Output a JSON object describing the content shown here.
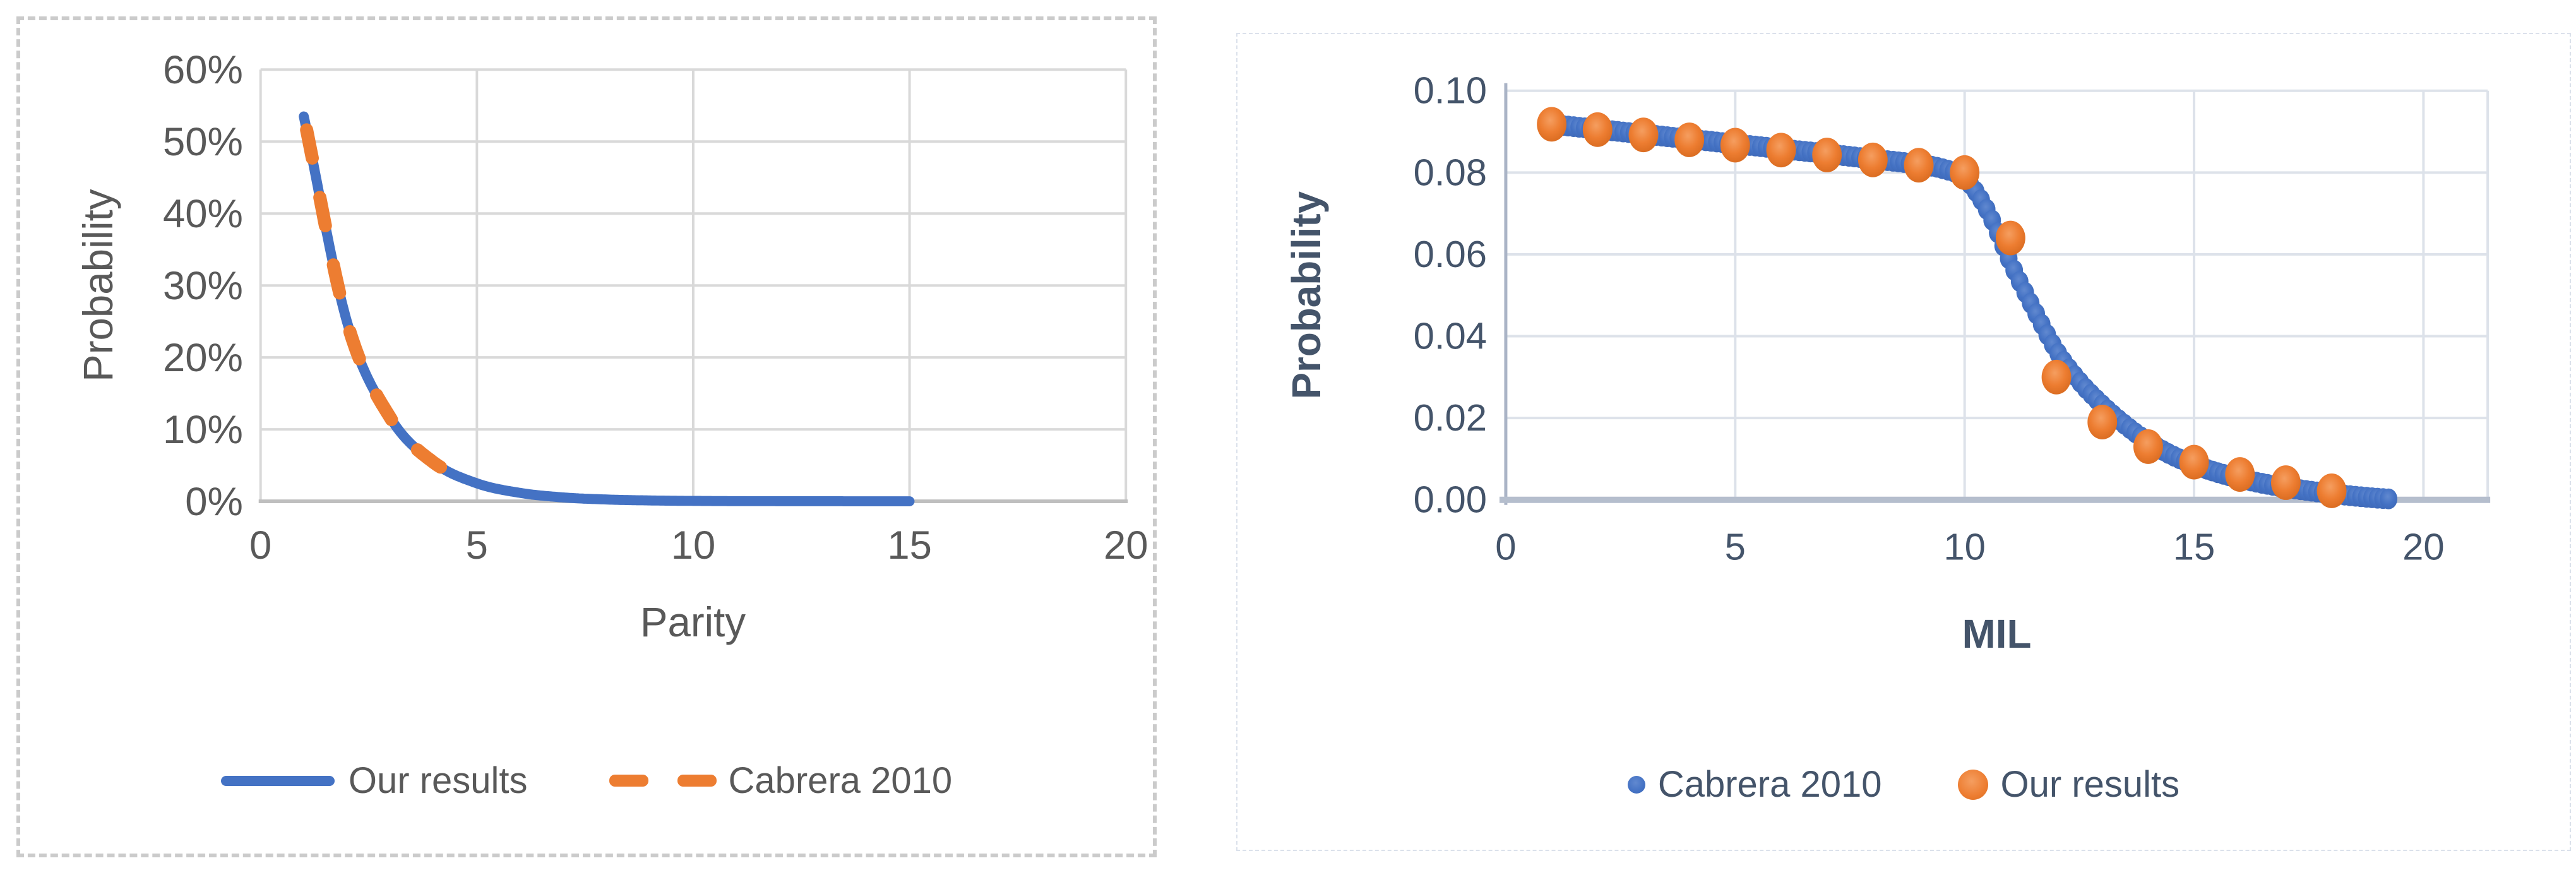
{
  "panel_borders": {
    "left_chart_panel": "#cbcbcb",
    "right_chart_panel": "#dbe1eb"
  },
  "accent_colors": {
    "blue": "#4472C4",
    "orange": "#ED7D31"
  },
  "chart_data": [
    {
      "type": "line",
      "title": "",
      "xlabel": "Parity",
      "ylabel": "Probability",
      "xlim": [
        0,
        20
      ],
      "ylim": [
        0,
        0.6
      ],
      "x_tick_values": [
        0,
        5,
        10,
        15,
        20
      ],
      "x_tick_labels": [
        "0",
        "5",
        "10",
        "15",
        "20"
      ],
      "y_tick_values": [
        0,
        0.1,
        0.2,
        0.3,
        0.4,
        0.5,
        0.6
      ],
      "y_tick_labels": [
        "0%",
        "10%",
        "20%",
        "30%",
        "40%",
        "50%",
        "60%"
      ],
      "grid": true,
      "legend_position": "bottom",
      "text_color": "#595959",
      "grid_color": "#d9d9d9",
      "axis_color": "#bfbfbf",
      "series": [
        {
          "name": "Our results",
          "color": "#4472C4",
          "style": "solid-line",
          "x": [
            1,
            2,
            3,
            4,
            5,
            6,
            7,
            8,
            9,
            10,
            11,
            12,
            13,
            14,
            15
          ],
          "values": [
            0.535,
            0.249,
            0.116,
            0.054,
            0.025,
            0.0117,
            0.0054,
            0.0025,
            0.0012,
            0.00055,
            0.00026,
            0.00012,
            6e-05,
            3e-05,
            1e-05
          ]
        },
        {
          "name": "Cabrera 2010",
          "color": "#ED7D31",
          "style": "dashed-line",
          "x": [
            1,
            2,
            3,
            4,
            5
          ],
          "values": [
            0.535,
            0.249,
            0.116,
            0.054,
            0.025
          ]
        }
      ]
    },
    {
      "type": "scatter",
      "title": "",
      "xlabel": "MIL",
      "ylabel": "Probability",
      "xlim": [
        0,
        21.4
      ],
      "ylim": [
        0,
        0.1
      ],
      "x_tick_values": [
        0,
        5,
        10,
        15,
        20
      ],
      "x_tick_labels": [
        "0",
        "5",
        "10",
        "15",
        "20"
      ],
      "y_tick_values": [
        0,
        0.02,
        0.04,
        0.06,
        0.08,
        0.1
      ],
      "y_tick_labels": [
        "0.00",
        "0.02",
        "0.04",
        "0.06",
        "0.08",
        "0.10"
      ],
      "grid": true,
      "legend_position": "bottom",
      "text_color": "#44546A",
      "grid_color": "#dde2ea",
      "axis_color": "#b5becd",
      "y_axis_line_color": "#aab4c6",
      "series": [
        {
          "name": "Cabrera 2010",
          "color": "#4472C4",
          "style": "dense-dots",
          "x": [
            1,
            2,
            3,
            4,
            5,
            6,
            7,
            8,
            9,
            9.5,
            10,
            10.5,
            11,
            11.5,
            12,
            12.5,
            13,
            13.5,
            14,
            14.5,
            15,
            15.5,
            16,
            16.5,
            17,
            17.5,
            18,
            18.5,
            19,
            19.3
          ],
          "values": [
            0.0918,
            0.0906,
            0.0894,
            0.0882,
            0.087,
            0.0858,
            0.0846,
            0.0833,
            0.082,
            0.081,
            0.0786,
            0.0706,
            0.058,
            0.0468,
            0.0365,
            0.029,
            0.0232,
            0.0183,
            0.0142,
            0.011,
            0.0086,
            0.0067,
            0.0052,
            0.004,
            0.003,
            0.0022,
            0.0015,
            0.0009,
            0.0004,
            0.0002
          ]
        },
        {
          "name": "Our results",
          "color": "#ED7D31",
          "style": "big-dots",
          "x": [
            1,
            2,
            3,
            4,
            5,
            6,
            7,
            8,
            9,
            10,
            11,
            12,
            13,
            14,
            15,
            16,
            17,
            18
          ],
          "values": [
            0.0918,
            0.0905,
            0.0892,
            0.088,
            0.0867,
            0.0855,
            0.0843,
            0.0831,
            0.0818,
            0.08,
            0.064,
            0.03,
            0.019,
            0.013,
            0.0092,
            0.0062,
            0.0042,
            0.0022
          ]
        }
      ]
    }
  ]
}
